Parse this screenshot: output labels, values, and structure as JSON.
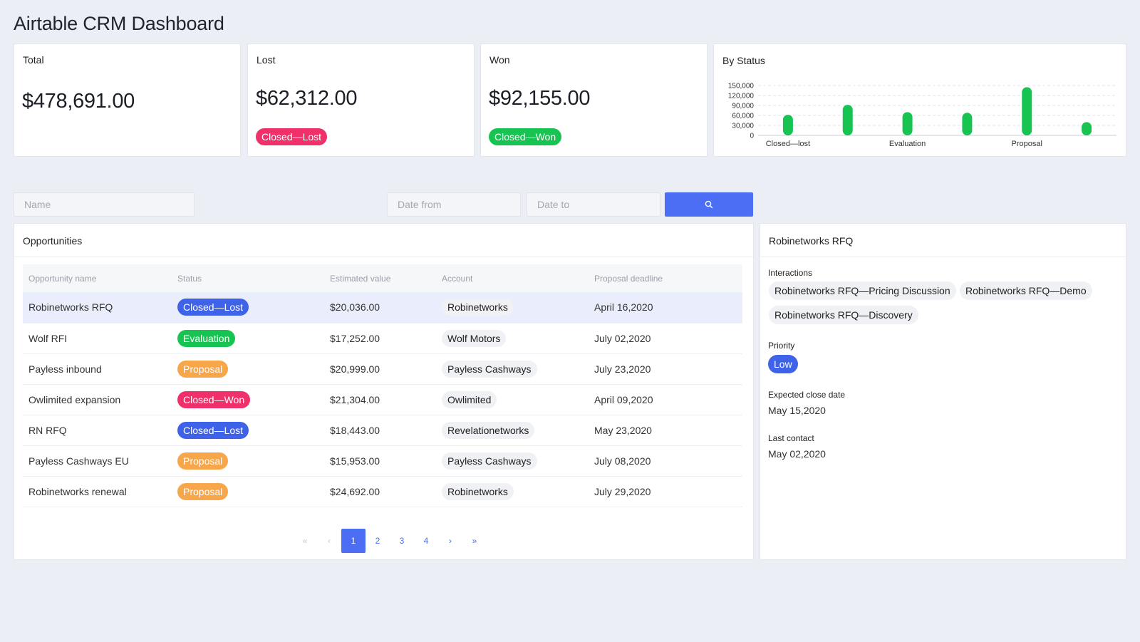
{
  "page": {
    "title": "Airtable CRM Dashboard"
  },
  "kpis": {
    "total": {
      "label": "Total",
      "value": "$478,691.00"
    },
    "lost": {
      "label": "Lost",
      "value": "$62,312.00",
      "badge": "Closed—Lost",
      "badge_color": "#f0306a"
    },
    "won": {
      "label": "Won",
      "value": "$92,155.00",
      "badge": "Closed—Won",
      "badge_color": "#17c451"
    }
  },
  "chart_data": {
    "type": "bar",
    "title": "By Status",
    "categories": [
      "Closed—lost",
      "",
      "Evaluation",
      "",
      "Proposal",
      ""
    ],
    "values": [
      62000,
      92000,
      70000,
      68000,
      145000,
      40000
    ],
    "ylim": [
      0,
      150000
    ],
    "yticks": [
      "0",
      "30,000",
      "60,000",
      "90,000",
      "120,000",
      "150,000"
    ],
    "bar_color": "#17c451",
    "grid": true
  },
  "filters": {
    "name_placeholder": "Name",
    "date_from_placeholder": "Date from",
    "date_to_placeholder": "Date to",
    "search_icon": "search-icon",
    "button_color": "#4c6ef5"
  },
  "opportunities": {
    "title": "Opportunities",
    "columns": [
      "Opportunity name",
      "Status",
      "Estimated value",
      "Account",
      "Proposal deadline"
    ],
    "rows": [
      {
        "name": "Robinetworks RFQ",
        "status": "Closed—Lost",
        "status_color": "#3f63e8",
        "value": "$20,036.00",
        "account": "Robinetworks",
        "deadline": "April 16,2020"
      },
      {
        "name": "Wolf RFI",
        "status": "Evaluation",
        "status_color": "#17c451",
        "value": "$17,252.00",
        "account": "Wolf Motors",
        "deadline": "July 02,2020"
      },
      {
        "name": "Payless inbound",
        "status": "Proposal",
        "status_color": "#f8a64a",
        "value": "$20,999.00",
        "account": "Payless Cashways",
        "deadline": "July 23,2020"
      },
      {
        "name": "Owlimited expansion",
        "status": "Closed—Won",
        "status_color": "#f0306a",
        "value": "$21,304.00",
        "account": "Owlimited",
        "deadline": "April 09,2020"
      },
      {
        "name": "RN RFQ",
        "status": "Closed—Lost",
        "status_color": "#3f63e8",
        "value": "$18,443.00",
        "account": "Revelationetworks",
        "deadline": "May 23,2020"
      },
      {
        "name": "Payless Cashways EU",
        "status": "Proposal",
        "status_color": "#f8a64a",
        "value": "$15,953.00",
        "account": "Payless Cashways",
        "deadline": "July 08,2020"
      },
      {
        "name": "Robinetworks renewal",
        "status": "Proposal",
        "status_color": "#f8a64a",
        "value": "$24,692.00",
        "account": "Robinetworks",
        "deadline": "July 29,2020"
      }
    ],
    "pagination": {
      "first": "«",
      "prev": "‹",
      "pages": [
        "1",
        "2",
        "3",
        "4"
      ],
      "next": "›",
      "last": "»",
      "current": "1"
    }
  },
  "detail": {
    "title": "Robinetworks RFQ",
    "interactions_label": "Interactions",
    "interactions": [
      "Robinetworks RFQ—Pricing Discussion",
      "Robinetworks RFQ—Demo",
      "Robinetworks RFQ—Discovery"
    ],
    "priority_label": "Priority",
    "priority": "Low",
    "priority_color": "#4c6ef5",
    "expected_close_label": "Expected close date",
    "expected_close": "May 15,2020",
    "last_contact_label": "Last contact",
    "last_contact": "May 02,2020"
  }
}
